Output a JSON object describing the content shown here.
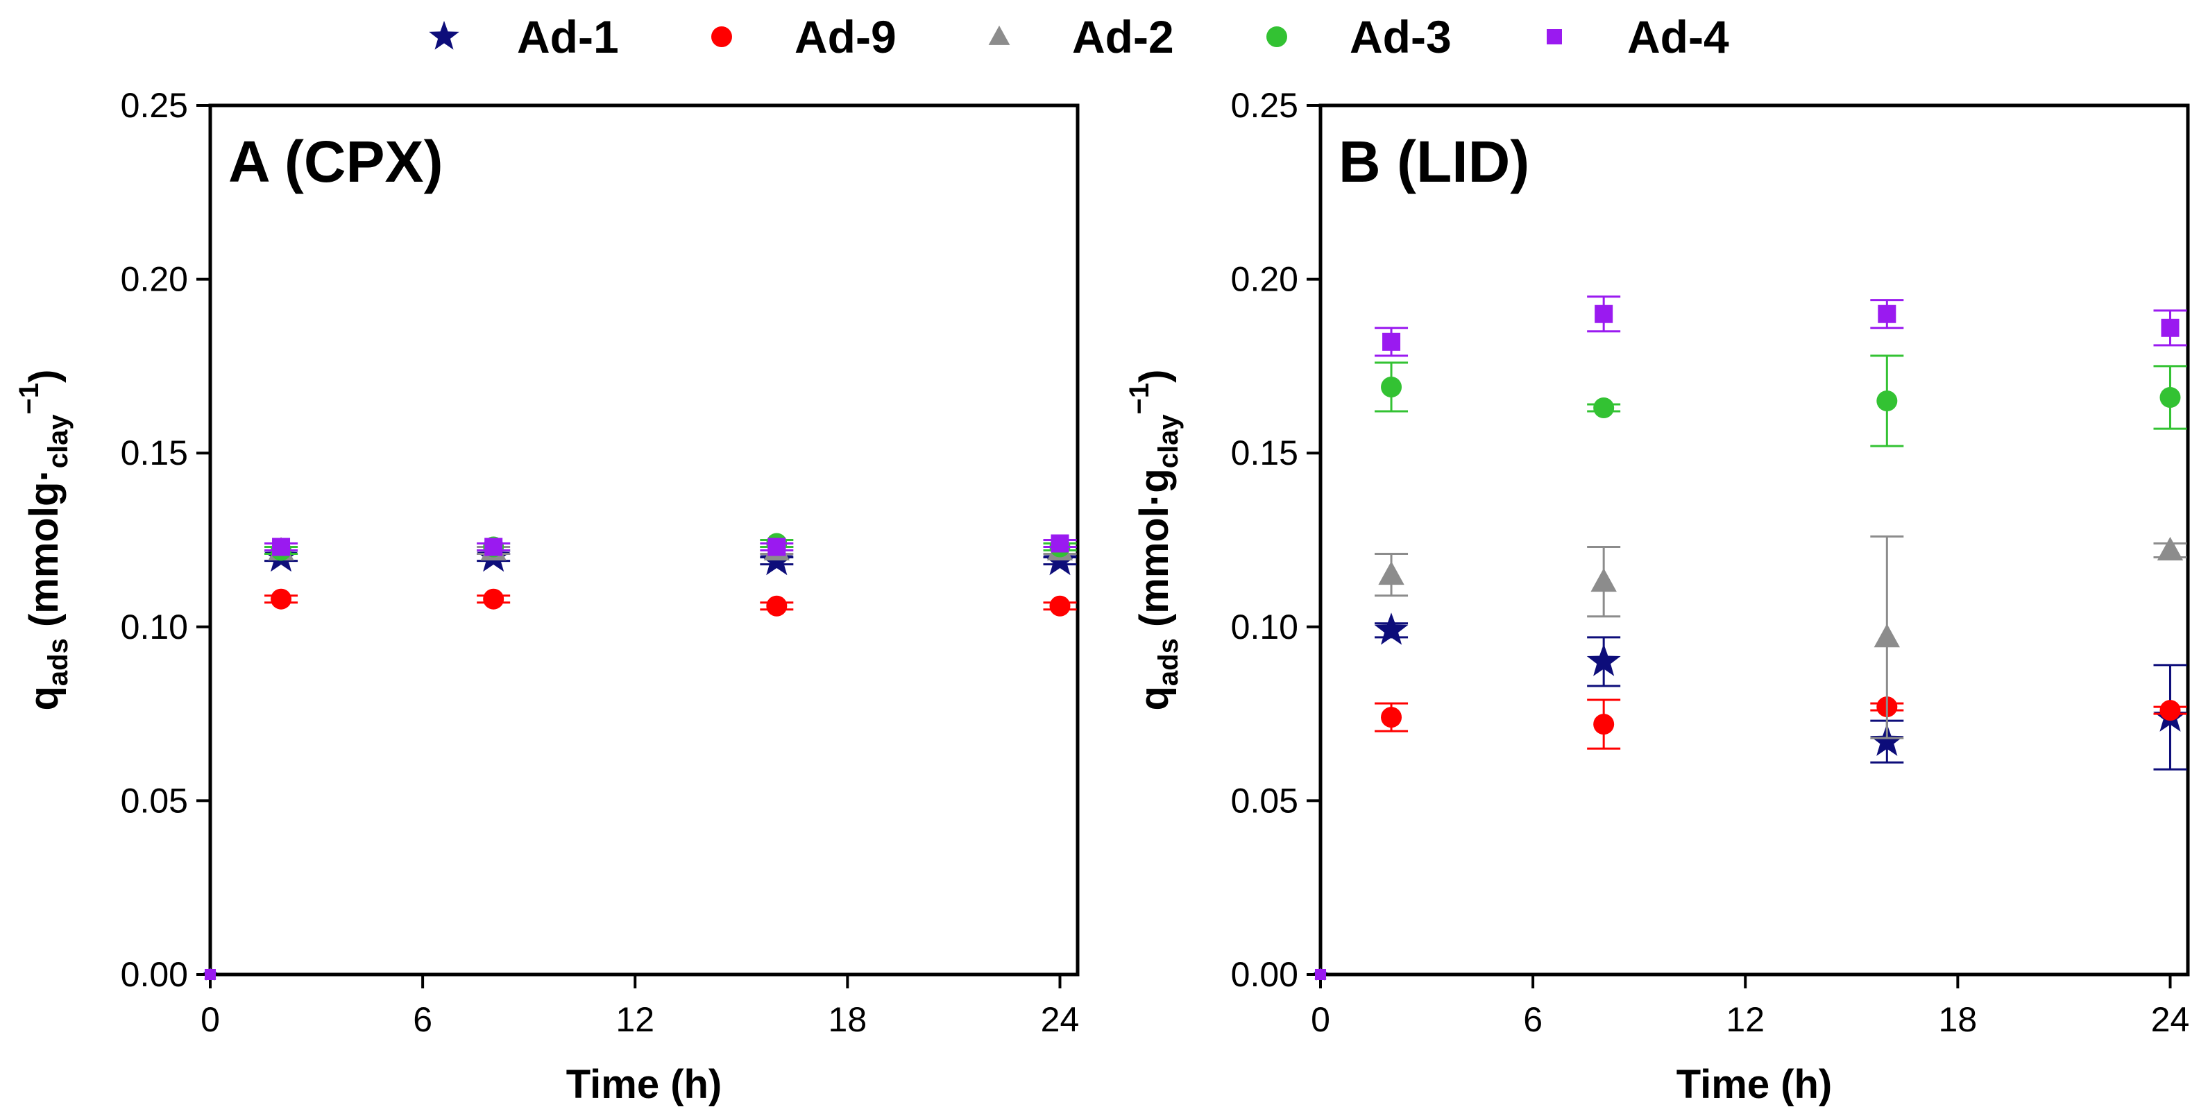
{
  "legend": [
    {
      "name": "Ad-1",
      "marker": "star",
      "color": "#0d0d7a"
    },
    {
      "name": "Ad-9",
      "marker": "circle",
      "color": "#ff0000"
    },
    {
      "name": "Ad-2",
      "marker": "triangle",
      "color": "#8c8c8c"
    },
    {
      "name": "Ad-3",
      "marker": "circle",
      "color": "#33c233"
    },
    {
      "name": "Ad-4",
      "marker": "square",
      "color": "#9a1af0"
    }
  ],
  "chart_data": [
    {
      "type": "scatter",
      "panel_label": "A (CPX)",
      "xlabel": "Time (h)",
      "ylabel": {
        "main": "q",
        "main_sub": "ads",
        "unit_open": " (mmolg·",
        "unit_sub": "clay",
        "unit_sup": "−1",
        "unit_close": ")"
      },
      "xlim": [
        0,
        24.5
      ],
      "ylim": [
        0,
        0.25
      ],
      "xticks": [
        0,
        6,
        12,
        18,
        24
      ],
      "xtick_labels": [
        "0",
        "6",
        "12",
        "18",
        "24"
      ],
      "yticks": [
        0,
        0.05,
        0.1,
        0.15,
        0.2,
        0.25
      ],
      "ytick_labels": [
        "0.00",
        "0.05",
        "0.10",
        "0.15",
        "0.20",
        "0.25"
      ],
      "series": [
        {
          "name": "Ad-1",
          "x": [
            0,
            2,
            8,
            16,
            24
          ],
          "y": [
            0,
            0.12,
            0.12,
            0.119,
            0.119
          ],
          "err": [
            0,
            0.001,
            0.001,
            0.001,
            0.001
          ]
        },
        {
          "name": "Ad-9",
          "x": [
            0,
            2,
            8,
            16,
            24
          ],
          "y": [
            0,
            0.108,
            0.108,
            0.106,
            0.106
          ],
          "err": [
            0,
            0.001,
            0.001,
            0.001,
            0.001
          ]
        },
        {
          "name": "Ad-2",
          "x": [
            0,
            2,
            8,
            16,
            24
          ],
          "y": [
            0,
            0.122,
            0.122,
            0.122,
            0.122
          ],
          "err": [
            0,
            0.001,
            0.001,
            0.001,
            0.001
          ]
        },
        {
          "name": "Ad-3",
          "x": [
            0,
            2,
            8,
            16,
            24
          ],
          "y": [
            0,
            0.122,
            0.123,
            0.124,
            0.123
          ],
          "err": [
            0,
            0.001,
            0.001,
            0.001,
            0.001
          ]
        },
        {
          "name": "Ad-4",
          "x": [
            0,
            2,
            8,
            16,
            24
          ],
          "y": [
            0,
            0.123,
            0.123,
            0.123,
            0.124
          ],
          "err": [
            0,
            0.001,
            0.001,
            0.001,
            0.001
          ]
        }
      ]
    },
    {
      "type": "scatter",
      "panel_label": "B (LID)",
      "xlabel": "Time (h)",
      "ylabel": {
        "main": "q",
        "main_sub": "ads",
        "unit_open": " (mmol·g",
        "unit_sub": "clay",
        "unit_sup": "−1",
        "unit_close": ")"
      },
      "xlim": [
        0,
        24.5
      ],
      "ylim": [
        0,
        0.25
      ],
      "xticks": [
        0,
        6,
        12,
        18,
        24
      ],
      "xtick_labels": [
        "0",
        "6",
        "12",
        "18",
        "24"
      ],
      "yticks": [
        0,
        0.05,
        0.1,
        0.15,
        0.2,
        0.25
      ],
      "ytick_labels": [
        "0.00",
        "0.05",
        "0.10",
        "0.15",
        "0.20",
        "0.25"
      ],
      "series": [
        {
          "name": "Ad-1",
          "x": [
            0,
            2,
            8,
            16,
            24
          ],
          "y": [
            0,
            0.099,
            0.09,
            0.067,
            0.074
          ],
          "err": [
            0,
            0.002,
            0.007,
            0.006,
            0.015
          ]
        },
        {
          "name": "Ad-9",
          "x": [
            0,
            2,
            8,
            16,
            24
          ],
          "y": [
            0,
            0.074,
            0.072,
            0.077,
            0.076
          ],
          "err": [
            0,
            0.004,
            0.007,
            0.001,
            0.001
          ]
        },
        {
          "name": "Ad-2",
          "x": [
            0,
            2,
            8,
            16,
            24
          ],
          "y": [
            0,
            0.115,
            0.113,
            0.097,
            0.122
          ],
          "err": [
            0,
            0.006,
            0.01,
            0.029,
            0.002
          ]
        },
        {
          "name": "Ad-3",
          "x": [
            0,
            2,
            8,
            16,
            24
          ],
          "y": [
            0,
            0.169,
            0.163,
            0.165,
            0.166
          ],
          "err": [
            0,
            0.007,
            0.001,
            0.013,
            0.009
          ]
        },
        {
          "name": "Ad-4",
          "x": [
            0,
            2,
            8,
            16,
            24
          ],
          "y": [
            0,
            0.182,
            0.19,
            0.19,
            0.186
          ],
          "err": [
            0,
            0.004,
            0.005,
            0.004,
            0.005
          ]
        }
      ]
    }
  ]
}
